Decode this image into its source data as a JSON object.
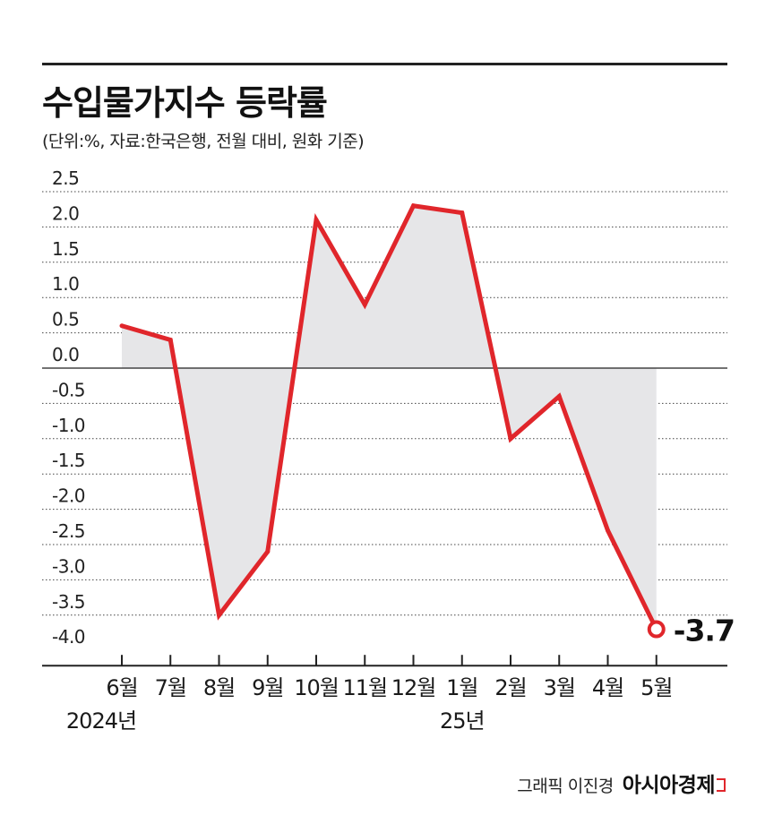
{
  "colors": {
    "line": "#e0262b",
    "fill": "#e6e6e8",
    "grid": "#444444",
    "axis": "#222222"
  },
  "chart_data": {
    "type": "area",
    "title": "수입물가지수 등락률",
    "subtitle": "(단위:%, 자료:한국은행, 전월 대비, 원화 기준)",
    "categories": [
      "6월",
      "7월",
      "8월",
      "9월",
      "10월",
      "11월",
      "12월",
      "1월",
      "2월",
      "3월",
      "4월",
      "5월"
    ],
    "year_labels": [
      {
        "category": "6월",
        "text": "2024년"
      },
      {
        "category": "1월",
        "text": "25년"
      }
    ],
    "series": [
      {
        "name": "수입물가지수 등락률",
        "values": [
          0.6,
          0.4,
          -3.5,
          -2.6,
          2.1,
          0.9,
          2.3,
          2.2,
          -1.0,
          -0.4,
          -2.3,
          -3.7
        ]
      }
    ],
    "yticks": [
      "2.5",
      "2.0",
      "1.5",
      "1.0",
      "0.5",
      "0.0",
      "-0.5",
      "-1.0",
      "-1.5",
      "-2.0",
      "-2.5",
      "-3.0",
      "-3.5",
      "-4.0"
    ],
    "ylim": [
      -4.0,
      2.5
    ],
    "last_value_label": "-3.7",
    "xlabel": "",
    "ylabel": ""
  },
  "credit": {
    "author": "그래픽 이진경",
    "brand": "아시아경제"
  }
}
